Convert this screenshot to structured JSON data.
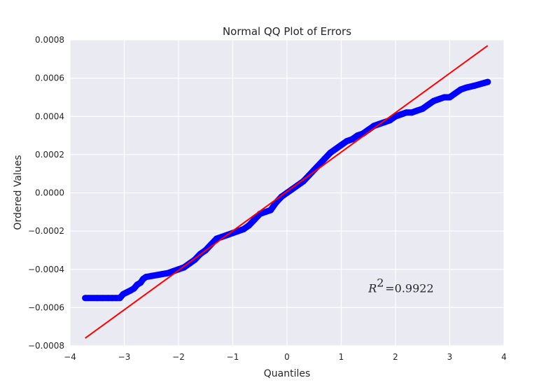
{
  "chart_data": {
    "type": "scatter",
    "title": "Normal QQ Plot of Errors",
    "xlabel": "Quantiles",
    "ylabel": "Ordered Values",
    "xlim": [
      -4,
      4
    ],
    "ylim": [
      -0.0008,
      0.0008
    ],
    "x_ticks": [
      -4,
      -3,
      -2,
      -1,
      0,
      1,
      2,
      3,
      4
    ],
    "x_tick_labels": [
      "−4",
      "−3",
      "−2",
      "−1",
      "0",
      "1",
      "2",
      "3",
      "4"
    ],
    "y_ticks": [
      -0.0008,
      -0.0006,
      -0.0004,
      -0.0002,
      0.0,
      0.0002,
      0.0004,
      0.0006,
      0.0008
    ],
    "y_tick_labels": [
      "−0.0008",
      "−0.0006",
      "−0.0004",
      "−0.0002",
      "0.0000",
      "0.0002",
      "0.0004",
      "0.0006",
      "0.0008"
    ],
    "grid": true,
    "background": "#eaeaf2",
    "points_color": "#0000ff",
    "line_color": "#ff0000",
    "points": [
      [
        -3.72,
        -0.00055
      ],
      [
        -3.5,
        -0.00055
      ],
      [
        -3.4,
        -0.00055
      ],
      [
        -3.3,
        -0.00055
      ],
      [
        -3.22,
        -0.00055
      ],
      [
        -3.15,
        -0.00055
      ],
      [
        -3.08,
        -0.00055
      ],
      [
        -3.02,
        -0.00053
      ],
      [
        -2.95,
        -0.00052
      ],
      [
        -2.88,
        -0.00051
      ],
      [
        -2.82,
        -0.0005
      ],
      [
        -2.76,
        -0.00048
      ],
      [
        -2.7,
        -0.00047
      ],
      [
        -2.65,
        -0.00045
      ],
      [
        -2.6,
        -0.00044
      ],
      [
        -2.5,
        -0.000435
      ],
      [
        -2.4,
        -0.00043
      ],
      [
        -2.3,
        -0.000425
      ],
      [
        -2.2,
        -0.00042
      ],
      [
        -2.1,
        -0.00041
      ],
      [
        -2.0,
        -0.0004
      ],
      [
        -1.9,
        -0.00039
      ],
      [
        -1.8,
        -0.00037
      ],
      [
        -1.7,
        -0.00035
      ],
      [
        -1.6,
        -0.00032
      ],
      [
        -1.5,
        -0.0003
      ],
      [
        -1.4,
        -0.00027
      ],
      [
        -1.3,
        -0.00024
      ],
      [
        -1.2,
        -0.00023
      ],
      [
        -1.1,
        -0.00022
      ],
      [
        -1.0,
        -0.00021
      ],
      [
        -0.9,
        -0.0002
      ],
      [
        -0.8,
        -0.00019
      ],
      [
        -0.7,
        -0.00017
      ],
      [
        -0.6,
        -0.00014
      ],
      [
        -0.5,
        -0.00011
      ],
      [
        -0.4,
        -0.0001
      ],
      [
        -0.3,
        -9e-05
      ],
      [
        -0.2,
        -5e-05
      ],
      [
        -0.1,
        -2e-05
      ],
      [
        0.0,
        0.0
      ],
      [
        0.1,
        2e-05
      ],
      [
        0.2,
        4e-05
      ],
      [
        0.3,
        6e-05
      ],
      [
        0.4,
        9e-05
      ],
      [
        0.5,
        0.00012
      ],
      [
        0.6,
        0.00015
      ],
      [
        0.7,
        0.00018
      ],
      [
        0.8,
        0.00021
      ],
      [
        0.9,
        0.00023
      ],
      [
        1.0,
        0.00025
      ],
      [
        1.1,
        0.00027
      ],
      [
        1.2,
        0.00028
      ],
      [
        1.3,
        0.0003
      ],
      [
        1.4,
        0.00031
      ],
      [
        1.5,
        0.00033
      ],
      [
        1.6,
        0.00035
      ],
      [
        1.7,
        0.00036
      ],
      [
        1.8,
        0.00037
      ],
      [
        1.9,
        0.00038
      ],
      [
        2.0,
        0.0004
      ],
      [
        2.1,
        0.00041
      ],
      [
        2.2,
        0.00042
      ],
      [
        2.3,
        0.00042
      ],
      [
        2.4,
        0.00043
      ],
      [
        2.5,
        0.00044
      ],
      [
        2.6,
        0.00046
      ],
      [
        2.7,
        0.00048
      ],
      [
        2.8,
        0.00049
      ],
      [
        2.9,
        0.0005
      ],
      [
        3.0,
        0.0005
      ],
      [
        3.1,
        0.00052
      ],
      [
        3.2,
        0.00054
      ],
      [
        3.3,
        0.00055
      ],
      [
        3.45,
        0.00056
      ],
      [
        3.7,
        0.00058
      ]
    ],
    "fit_line": {
      "x": [
        -3.72,
        3.7
      ],
      "y": [
        -0.00076,
        0.00077
      ]
    },
    "annotation": {
      "label": "R",
      "sup": "2",
      "text": "=0.9922",
      "x": 1.5,
      "y": -0.00052
    }
  }
}
